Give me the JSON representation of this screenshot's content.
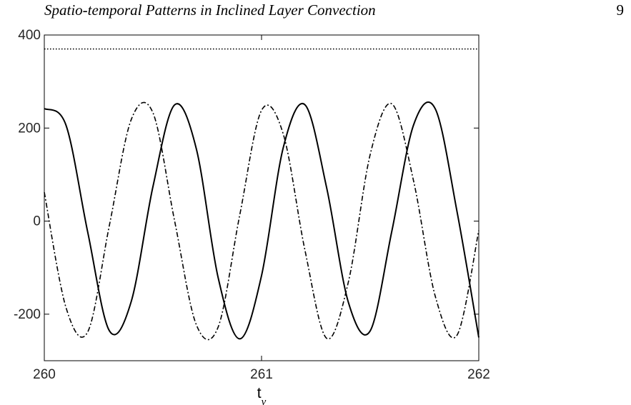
{
  "header": {
    "running_title": "Spatio-temporal Patterns in Inclined Layer Convection",
    "page_number": "9"
  },
  "chart_data": {
    "type": "line",
    "title": "",
    "xlabel": "t",
    "xlabel_subscript": "ν",
    "ylabel": "",
    "xlim": [
      260,
      262
    ],
    "ylim": [
      -300,
      400
    ],
    "xticks": [
      260,
      261,
      262
    ],
    "yticks": [
      -200,
      0,
      200,
      400
    ],
    "grid": false,
    "legend": "none",
    "series": [
      {
        "style": "solid",
        "color": "#000000",
        "x": [
          260.0,
          260.1,
          260.2,
          260.3,
          260.4,
          260.5,
          260.6,
          260.7,
          260.8,
          260.9,
          261.0,
          261.1,
          261.2,
          261.3,
          261.4,
          261.5,
          261.6,
          261.7,
          261.8,
          261.9,
          262.0
        ],
        "y": [
          242,
          206,
          -24,
          -236,
          -173,
          74,
          250,
          155,
          -121,
          -253,
          -117,
          158,
          250,
          71,
          -175,
          -236,
          -21,
          207,
          241,
          20,
          -250
        ]
      },
      {
        "style": "dash-dot",
        "color": "#000000",
        "x": [
          260.0,
          260.1,
          260.2,
          260.3,
          260.4,
          260.5,
          260.6,
          260.7,
          260.8,
          260.9,
          261.0,
          261.1,
          261.2,
          261.3,
          261.4,
          261.5,
          261.6,
          261.7,
          261.8,
          261.9,
          262.0
        ],
        "y": [
          62,
          -186,
          -238,
          -8,
          218,
          233,
          0,
          -223,
          -228,
          14,
          238,
          187,
          -63,
          -252,
          -130,
          143,
          252,
          86,
          -162,
          -245,
          -20
        ]
      },
      {
        "style": "dotted",
        "color": "#000000",
        "x": [
          260.0,
          262.0
        ],
        "y": [
          370,
          370
        ]
      }
    ]
  }
}
